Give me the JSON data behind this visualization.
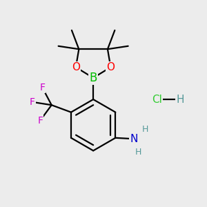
{
  "bg_color": "#ececec",
  "bond_color": "#000000",
  "bond_lw": 1.6,
  "atom_colors": {
    "B": "#00bb00",
    "O": "#ff0000",
    "F": "#cc00cc",
    "N": "#0000cc",
    "H_amine": "#559999",
    "Cl": "#33cc33",
    "H_hcl": "#559999"
  },
  "figsize": [
    3.0,
    3.0
  ],
  "dpi": 100,
  "xlim": [
    0,
    10
  ],
  "ylim": [
    0,
    10
  ]
}
